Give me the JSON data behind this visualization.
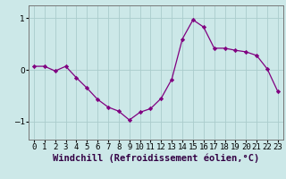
{
  "x": [
    0,
    1,
    2,
    3,
    4,
    5,
    6,
    7,
    8,
    9,
    10,
    11,
    12,
    13,
    14,
    15,
    16,
    17,
    18,
    19,
    20,
    21,
    22,
    23
  ],
  "y": [
    0.07,
    0.07,
    -0.02,
    0.07,
    -0.15,
    -0.35,
    -0.57,
    -0.72,
    -0.8,
    -0.97,
    -0.82,
    -0.75,
    -0.55,
    -0.18,
    0.6,
    0.97,
    0.83,
    0.42,
    0.42,
    0.38,
    0.35,
    0.28,
    0.02,
    -0.42
  ],
  "line_color": "#800080",
  "marker": "D",
  "marker_size": 2.2,
  "bg_color": "#cce8e8",
  "grid_color": "#aacccc",
  "xlabel": "Windchill (Refroidissement éolien,°C)",
  "xlabel_fontsize": 7.5,
  "tick_fontsize": 6.5,
  "ylim": [
    -1.35,
    1.25
  ],
  "xlim": [
    -0.5,
    23.5
  ],
  "yticks": [
    -1,
    0,
    1
  ],
  "spine_color": "#777777"
}
